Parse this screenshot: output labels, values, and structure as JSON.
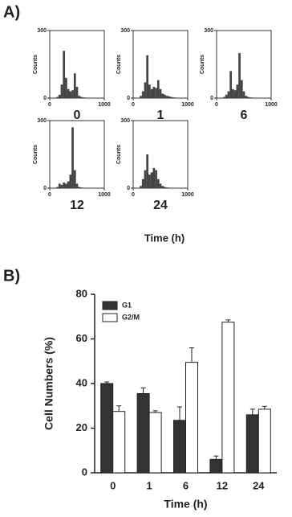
{
  "panels": [
    {
      "label": "A)",
      "xlabel": "Time (h)"
    },
    {
      "label": "B)"
    }
  ],
  "chart_data": [
    {
      "type": "histogram",
      "title": "0",
      "ylabel": "Counts",
      "xlim": [
        0,
        1000
      ],
      "xticks": [
        0,
        1000
      ],
      "ylim": [
        0,
        300
      ],
      "yticks": [
        0,
        300
      ],
      "color": "#444444",
      "bins": [
        0,
        40,
        80,
        120,
        160,
        200,
        240,
        280,
        320,
        360,
        400,
        440,
        480,
        520,
        560,
        600,
        640,
        680,
        720,
        760,
        800,
        840,
        880,
        920,
        960,
        1000
      ],
      "values": [
        0,
        0,
        0,
        5,
        15,
        60,
        210,
        90,
        40,
        30,
        35,
        110,
        50,
        10,
        5,
        3,
        2,
        2,
        1,
        1,
        1,
        0,
        0,
        0,
        0
      ]
    },
    {
      "type": "histogram",
      "title": "1",
      "ylabel": "Counts",
      "xlim": [
        0,
        1000
      ],
      "xticks": [
        0,
        1000
      ],
      "ylim": [
        0,
        300
      ],
      "yticks": [
        0,
        300
      ],
      "color": "#444444",
      "bins": [
        0,
        40,
        80,
        120,
        160,
        200,
        240,
        280,
        320,
        360,
        400,
        440,
        480,
        520,
        560,
        600,
        640,
        680,
        720,
        760,
        800,
        840,
        880,
        920,
        960,
        1000
      ],
      "values": [
        0,
        0,
        0,
        10,
        30,
        70,
        190,
        60,
        40,
        50,
        45,
        80,
        40,
        20,
        15,
        10,
        8,
        5,
        3,
        2,
        1,
        1,
        0,
        0,
        0
      ]
    },
    {
      "type": "histogram",
      "title": "6",
      "ylabel": "Counts",
      "xlim": [
        0,
        1000
      ],
      "xticks": [
        0,
        1000
      ],
      "ylim": [
        0,
        300
      ],
      "yticks": [
        0,
        300
      ],
      "color": "#444444",
      "bins": [
        0,
        40,
        80,
        120,
        160,
        200,
        240,
        280,
        320,
        360,
        400,
        440,
        480,
        520,
        560,
        600,
        640,
        680,
        720,
        760,
        800,
        840,
        880,
        920,
        960,
        1000
      ],
      "values": [
        0,
        0,
        0,
        5,
        15,
        30,
        120,
        40,
        35,
        60,
        200,
        80,
        30,
        10,
        5,
        3,
        2,
        1,
        1,
        0,
        0,
        0,
        0,
        0,
        0
      ]
    },
    {
      "type": "histogram",
      "title": "12",
      "ylabel": "Counts",
      "xlim": [
        0,
        1000
      ],
      "xticks": [
        0,
        1000
      ],
      "ylim": [
        0,
        300
      ],
      "yticks": [
        0,
        300
      ],
      "color": "#444444",
      "bins": [
        0,
        40,
        80,
        120,
        160,
        200,
        240,
        280,
        320,
        360,
        400,
        440,
        480,
        520,
        560,
        600,
        640,
        680,
        720,
        760,
        800,
        840,
        880,
        920,
        960,
        1000
      ],
      "values": [
        0,
        0,
        0,
        5,
        20,
        15,
        25,
        20,
        30,
        60,
        270,
        80,
        20,
        5,
        3,
        2,
        1,
        1,
        0,
        0,
        0,
        0,
        0,
        0,
        0
      ]
    },
    {
      "type": "histogram",
      "title": "24",
      "ylabel": "Counts",
      "xlim": [
        0,
        1000
      ],
      "xticks": [
        0,
        1000
      ],
      "ylim": [
        0,
        300
      ],
      "yticks": [
        0,
        300
      ],
      "color": "#444444",
      "bins": [
        0,
        40,
        80,
        120,
        160,
        200,
        240,
        280,
        320,
        360,
        400,
        440,
        480,
        520,
        560,
        600,
        640,
        680,
        720,
        760,
        800,
        840,
        880,
        920,
        960,
        1000
      ],
      "values": [
        0,
        0,
        0,
        10,
        40,
        80,
        150,
        60,
        70,
        90,
        80,
        40,
        20,
        10,
        5,
        3,
        2,
        1,
        1,
        0,
        0,
        0,
        0,
        0,
        0
      ]
    },
    {
      "type": "bar",
      "ylabel": "Cell Numbers (%)",
      "xlabel": "Time (h)",
      "categories": [
        "0",
        "1",
        "6",
        "12",
        "24"
      ],
      "ylim": [
        0,
        80
      ],
      "yticks": [
        0,
        20,
        40,
        60,
        80
      ],
      "legend": "top-left",
      "series": [
        {
          "name": "G1",
          "color": "#333333",
          "values": [
            40,
            35.5,
            23.5,
            6,
            26
          ],
          "errors": [
            0.7,
            2.5,
            6,
            1.5,
            2.5
          ]
        },
        {
          "name": "G2/M",
          "color": "#ffffff",
          "values": [
            27.5,
            27,
            49.5,
            67.5,
            28.5
          ],
          "errors": [
            2.5,
            0.8,
            6.5,
            1,
            1.3
          ]
        }
      ]
    }
  ]
}
